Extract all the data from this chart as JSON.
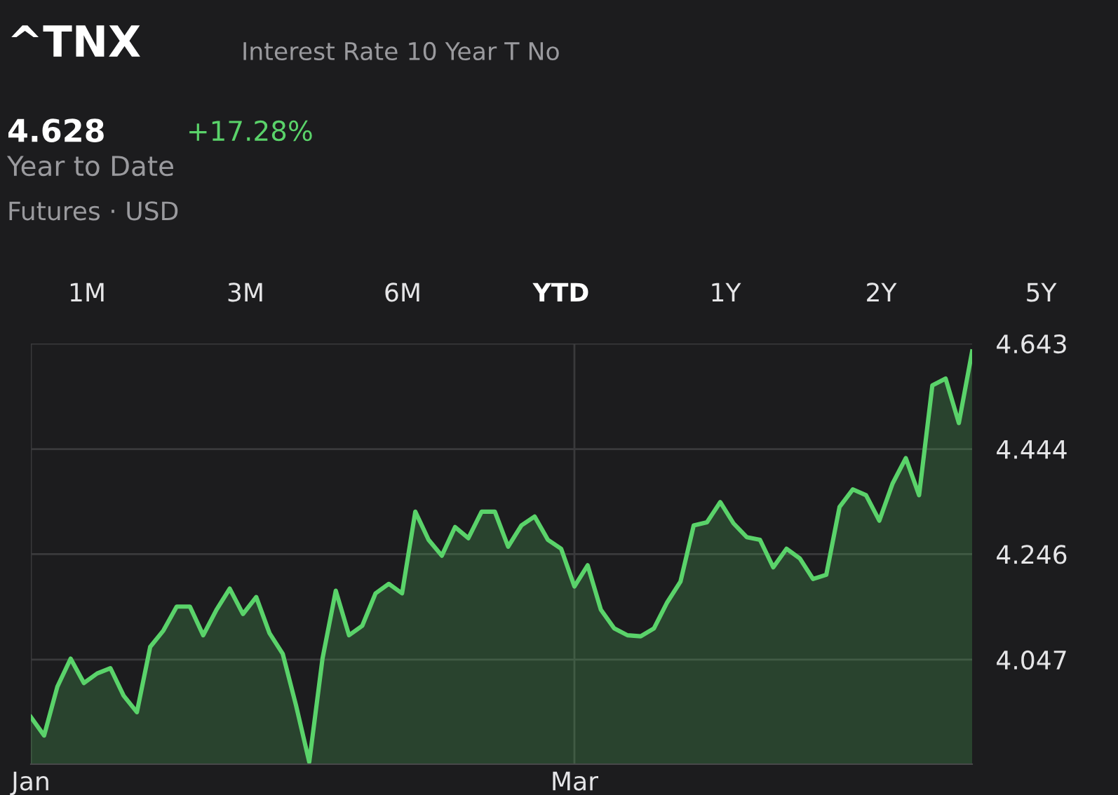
{
  "chart_data": {
    "type": "area",
    "title": "^TNX",
    "subtitle": "Interest Rate 10 Year T No",
    "annotations": [
      "4.628",
      "+17.28%",
      "Year to Date",
      "Futures · USD",
      "1M",
      "3M",
      "6M",
      "YTD",
      "1Y",
      "2Y",
      "5Y"
    ],
    "categories": [
      "Jan",
      null,
      null,
      null,
      null,
      null,
      null,
      null,
      null,
      null,
      null,
      null,
      null,
      null,
      null,
      null,
      null,
      null,
      null,
      null,
      null,
      null,
      null,
      null,
      null,
      null,
      null,
      null,
      null,
      null,
      null,
      null,
      null,
      null,
      null,
      null,
      null,
      null,
      null,
      null,
      null,
      "Mar",
      null,
      null,
      null,
      null,
      null,
      null,
      null,
      null,
      null,
      null,
      null,
      null,
      null,
      null,
      null,
      null,
      null,
      null,
      null,
      null,
      null,
      null,
      null,
      null,
      null,
      null,
      null,
      null,
      null,
      null
    ],
    "series": [
      {
        "color": "#5ad36a",
        "values": [
          3.939,
          3.904,
          3.996,
          4.049,
          4.003,
          4.021,
          4.031,
          3.979,
          3.948,
          4.071,
          4.102,
          4.147,
          4.147,
          4.093,
          4.141,
          4.181,
          4.133,
          4.165,
          4.097,
          4.058,
          3.961,
          3.854,
          4.049,
          4.177,
          4.093,
          4.111,
          4.172,
          4.19,
          4.172,
          4.326,
          4.273,
          4.243,
          4.297,
          4.276,
          4.326,
          4.326,
          4.26,
          4.3,
          4.317,
          4.273,
          4.256,
          4.185,
          4.225,
          4.141,
          4.106,
          4.093,
          4.091,
          4.106,
          4.155,
          4.194,
          4.3,
          4.306,
          4.344,
          4.304,
          4.278,
          4.273,
          4.221,
          4.256,
          4.238,
          4.199,
          4.207,
          4.335,
          4.368,
          4.357,
          4.309,
          4.379,
          4.427,
          4.357,
          4.564,
          4.577,
          4.493,
          4.628
        ]
      }
    ],
    "ylim": [
      3.85,
      4.643
    ],
    "yticks": [
      4.047,
      4.246,
      4.444,
      4.643
    ],
    "grid": true,
    "legend": false,
    "marker": "none",
    "line_style": "solid"
  }
}
